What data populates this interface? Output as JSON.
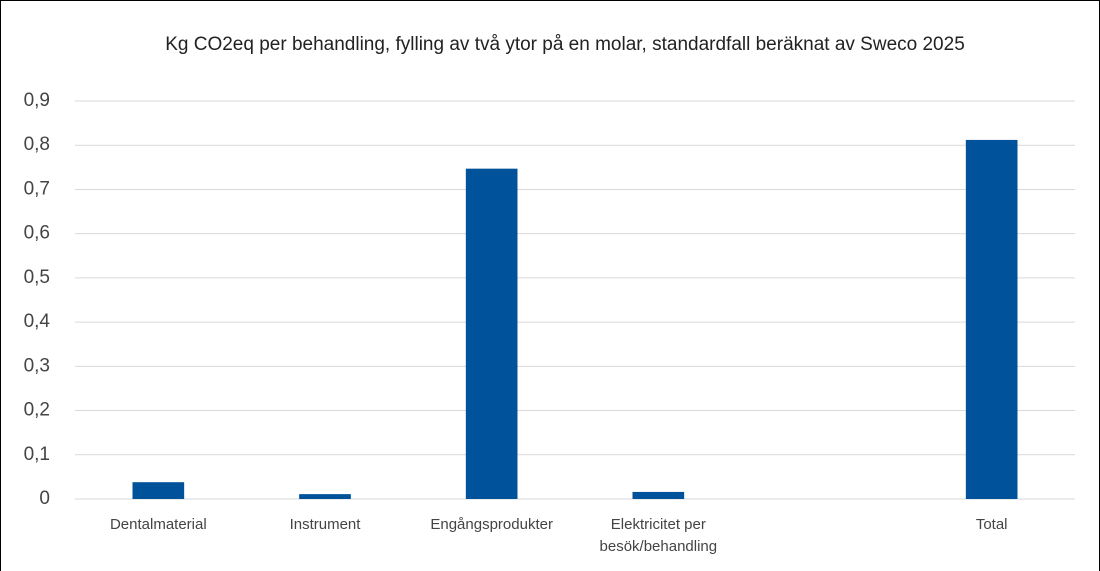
{
  "chart_data": {
    "type": "bar",
    "title": "Kg CO2eq per behandling, fylling av två ytor på en molar, standardfall beräknat av Sweco 2025",
    "categories": [
      "Dentalmaterial",
      "Instrument",
      "Engångsprodukter",
      "Elektricitet per besök/behandling",
      null,
      "Total"
    ],
    "values": [
      0.038,
      0.011,
      0.747,
      0.016,
      null,
      0.812
    ],
    "color": "#00539b",
    "ylim": [
      0,
      0.9
    ],
    "yticks": [
      0,
      {
        "value": 0.1,
        "label": "0,1"
      },
      {
        "value": 0.2,
        "label": "0,2"
      },
      {
        "value": 0.3,
        "label": "0,3"
      },
      {
        "value": 0.4,
        "label": "0,4"
      },
      {
        "value": 0.5,
        "label": "0,5"
      },
      {
        "value": 0.6,
        "label": "0,6"
      },
      {
        "value": 0.7,
        "label": "0,7"
      },
      {
        "value": 0.8,
        "label": "0,8"
      },
      {
        "value": 0.9,
        "label": "0,9"
      }
    ],
    "grid": true
  }
}
